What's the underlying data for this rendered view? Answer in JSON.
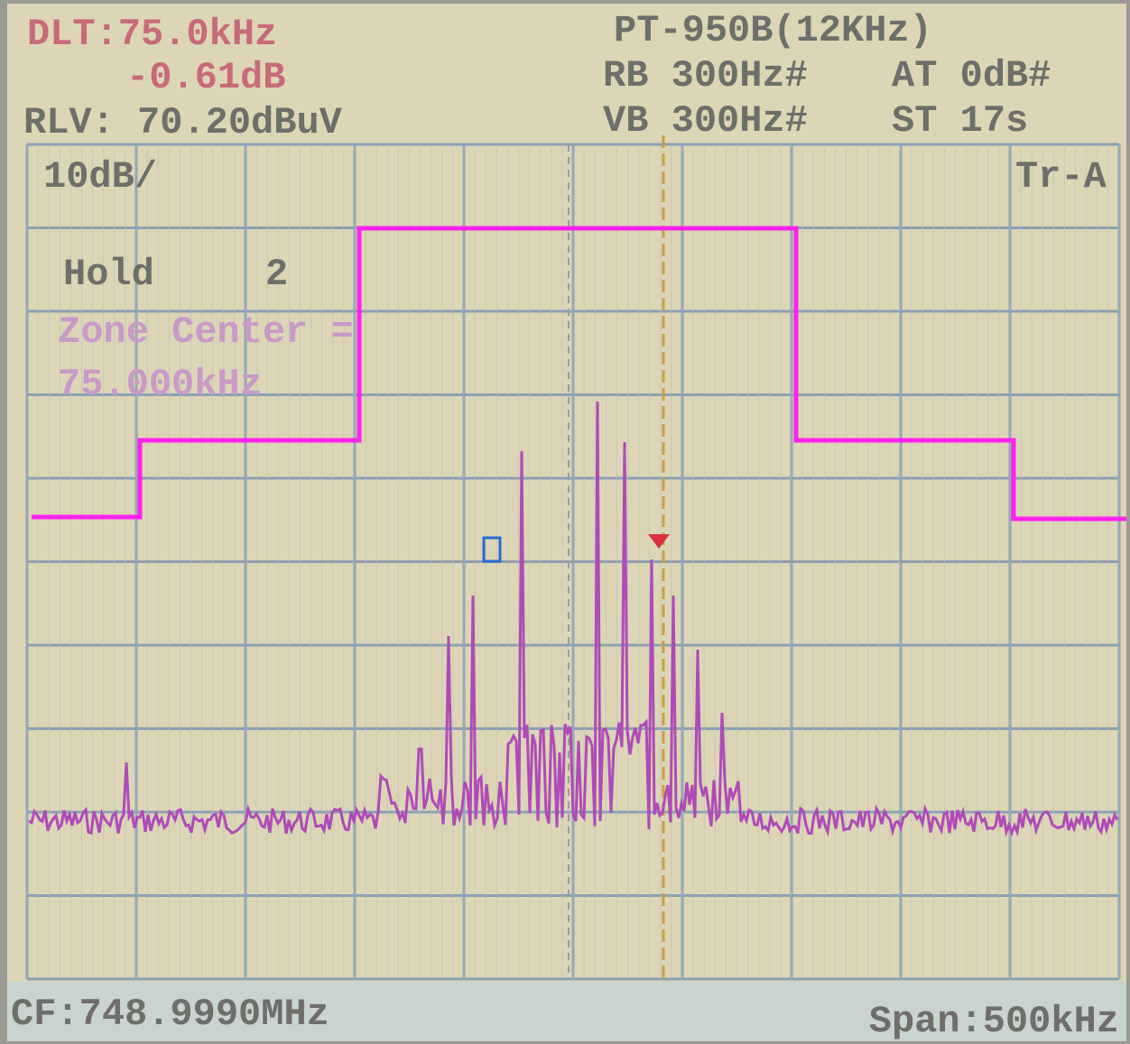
{
  "header": {
    "delta": "DLT:75.0kHz",
    "delta_level": "-0.61dB",
    "ref_level": "RLV: 70.20dBuV",
    "model": "PT-950B(12KHz)",
    "rb": "RB 300Hz#",
    "at": "AT 0dB#",
    "vb": "VB 300Hz#",
    "st": "ST 17s"
  },
  "screen": {
    "scale": "10dB/",
    "trace": "Tr-A",
    "hold_label": "Hold",
    "hold_value": "2",
    "zone_label": "Zone Center =",
    "zone_value": "75.000kHz"
  },
  "footer": {
    "center_frequency": "CF:748.9990MHz",
    "span": "Span:500kHz"
  }
}
